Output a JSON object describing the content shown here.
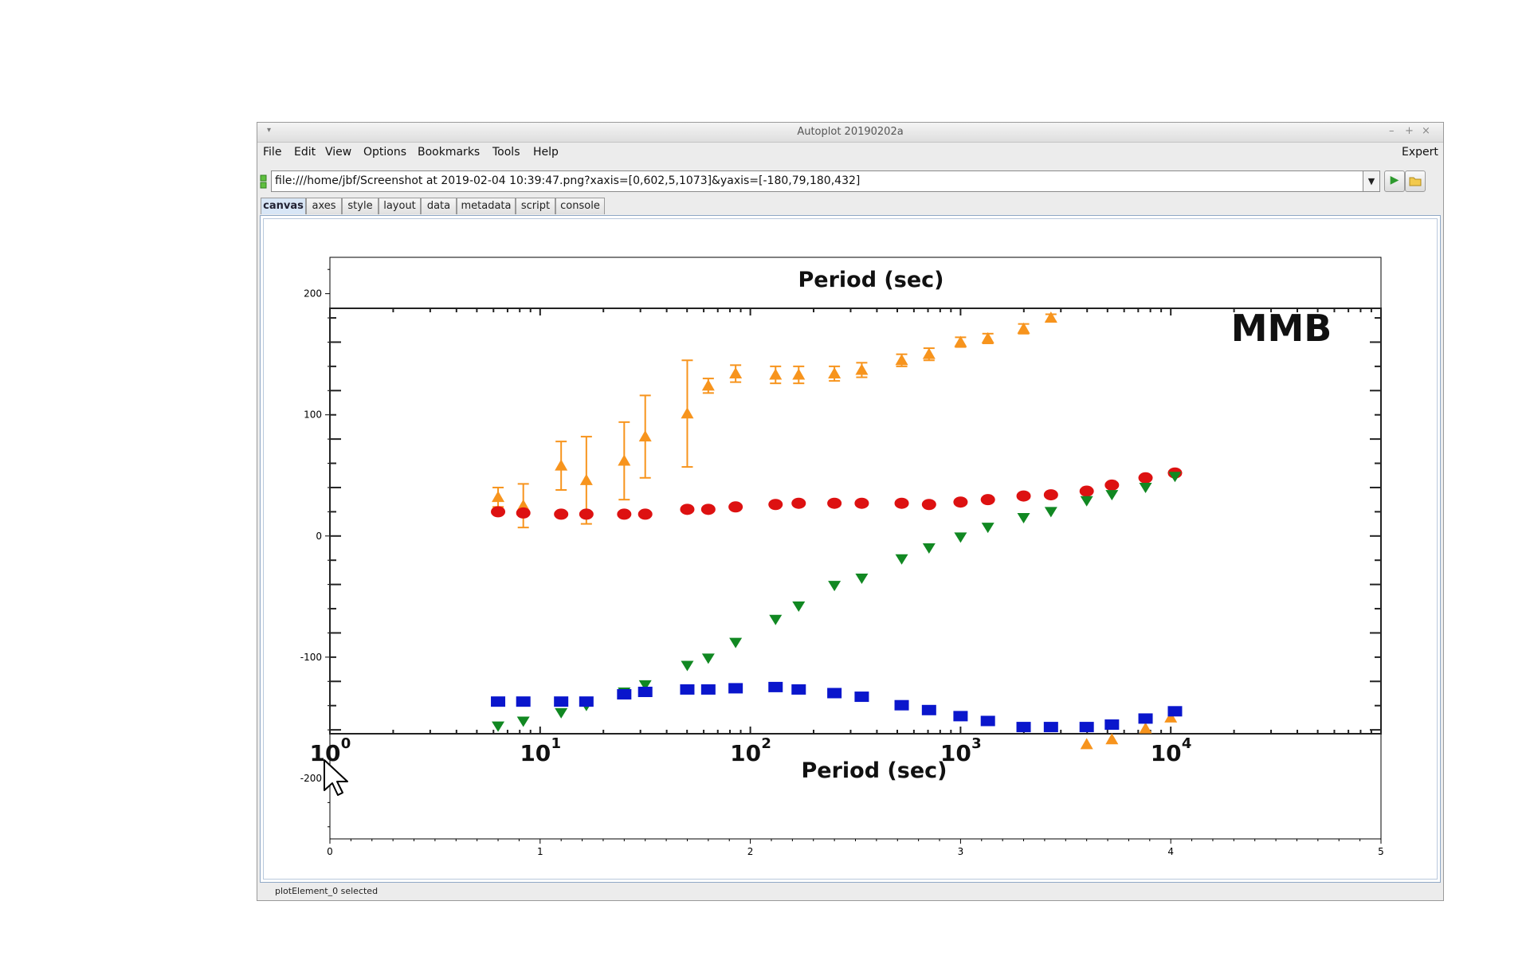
{
  "window": {
    "title": "Autoplot 20190202a",
    "controls": [
      "–",
      "+",
      "×"
    ]
  },
  "menubar": {
    "items": [
      "File",
      "Edit",
      "View",
      "Options",
      "Bookmarks",
      "Tools",
      "Help"
    ],
    "right": "Expert"
  },
  "url": {
    "value": "file:///home/jbf/Screenshot at 2019-02-04 10:39:47.png?xaxis=[0,602,5,1073]&yaxis=[-180,79,180,432]"
  },
  "tabs": [
    "canvas",
    "axes",
    "style",
    "layout",
    "data",
    "metadata",
    "script",
    "console"
  ],
  "active_tab": "canvas",
  "status": "plotElement_0 selected",
  "icons": {
    "url_status": "connection-status-icon",
    "dropdown": "dropdown-arrow-icon",
    "go": "play-icon",
    "browse": "folder-icon",
    "cursor": "mouse-pointer-icon"
  },
  "chart_data": {
    "type": "scatter",
    "xlim": [
      0,
      5
    ],
    "ylim": [
      -250,
      230
    ],
    "x_ticks": [
      "0",
      "1",
      "2",
      "3",
      "4",
      "5"
    ],
    "y_ticks": [
      "-200",
      "-100",
      "0",
      "100",
      "200"
    ],
    "image": {
      "title": "Period (sec)",
      "xlabel": "Period (sec)",
      "label": "MMB",
      "x_tick_labels": [
        "10",
        "10",
        "10",
        "10",
        "10"
      ],
      "x_tick_exponents": [
        "0",
        "1",
        "2",
        "3",
        "4"
      ],
      "x_tick_positions": [
        0,
        1,
        2,
        3,
        4
      ],
      "colors": {
        "orange": "#f7941d",
        "red": "#dd1111",
        "green": "#118822",
        "blue": "#0a16cc"
      },
      "series": [
        {
          "color": "orange",
          "marker": "triangle-up",
          "x": [
            0.8,
            0.92,
            1.1,
            1.22,
            1.4,
            1.5,
            1.7,
            1.8,
            1.93,
            2.12,
            2.23,
            2.4,
            2.53,
            2.72,
            2.85,
            3.0,
            3.13,
            3.3,
            3.43
          ],
          "y": [
            32,
            25,
            58,
            46,
            62,
            82,
            101,
            124,
            134,
            133,
            133,
            134,
            137,
            145,
            150,
            160,
            163,
            171,
            180
          ],
          "err": [
            8,
            18,
            20,
            36,
            32,
            34,
            44,
            6,
            7,
            7,
            7,
            6,
            6,
            5,
            5,
            4,
            4,
            4,
            3
          ]
        },
        {
          "color": "orange",
          "marker": "triangle-up",
          "x": [
            3.6,
            3.72,
            3.88,
            4.0
          ],
          "y": [
            -172,
            -168,
            -159,
            -150
          ],
          "err": [
            0,
            0,
            0,
            0
          ]
        },
        {
          "color": "red",
          "marker": "circle",
          "x": [
            0.8,
            0.92,
            1.1,
            1.22,
            1.4,
            1.5,
            1.7,
            1.8,
            1.93,
            2.12,
            2.23,
            2.4,
            2.53,
            2.72,
            2.85,
            3.0,
            3.13,
            3.3,
            3.43,
            3.6,
            3.72,
            3.88,
            4.02
          ],
          "y": [
            20,
            19,
            18,
            18,
            18,
            18,
            22,
            22,
            24,
            26,
            27,
            27,
            27,
            27,
            26,
            28,
            30,
            33,
            34,
            37,
            42,
            48,
            52
          ]
        },
        {
          "color": "green",
          "marker": "triangle-down",
          "x": [
            0.8,
            0.92,
            1.1,
            1.22,
            1.4,
            1.5,
            1.7,
            1.8,
            1.93,
            2.12,
            2.23,
            2.4,
            2.53,
            2.72,
            2.85,
            3.0,
            3.13,
            3.3,
            3.43,
            3.6,
            3.72,
            3.88,
            4.02
          ],
          "y": [
            -157,
            -153,
            -146,
            -140,
            -129,
            -123,
            -107,
            -101,
            -88,
            -69,
            -58,
            -41,
            -35,
            -19,
            -10,
            -1,
            7,
            15,
            20,
            29,
            34,
            40,
            49
          ]
        },
        {
          "color": "blue",
          "marker": "square",
          "x": [
            0.8,
            0.92,
            1.1,
            1.22,
            1.4,
            1.5,
            1.7,
            1.8,
            1.93,
            2.12,
            2.23,
            2.4,
            2.53,
            2.72,
            2.85,
            3.0,
            3.13,
            3.3,
            3.43,
            3.6,
            3.72,
            3.88,
            4.02
          ],
          "y": [
            -137,
            -137,
            -137,
            -137,
            -131,
            -129,
            -127,
            -127,
            -126,
            -125,
            -127,
            -130,
            -133,
            -140,
            -144,
            -149,
            -153,
            -158,
            -158,
            -158,
            -156,
            -151,
            -145
          ]
        }
      ]
    }
  }
}
